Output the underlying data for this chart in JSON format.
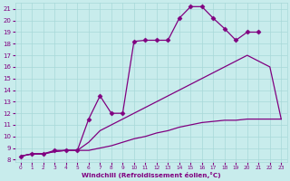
{
  "xlabel": "Windchill (Refroidissement éolien,°C)",
  "background_color": "#c8ecec",
  "line_color": "#800080",
  "grid_color": "#a8d8d8",
  "xlim": [
    -0.5,
    23.5
  ],
  "ylim": [
    7.8,
    21.5
  ],
  "xticks": [
    0,
    1,
    2,
    3,
    4,
    5,
    6,
    7,
    8,
    9,
    10,
    11,
    12,
    13,
    14,
    15,
    16,
    17,
    18,
    19,
    20,
    21,
    22,
    23
  ],
  "yticks": [
    8,
    9,
    10,
    11,
    12,
    13,
    14,
    15,
    16,
    17,
    18,
    19,
    20,
    21
  ],
  "series": [
    {
      "x": [
        0,
        1,
        2,
        3,
        4,
        5,
        6,
        7,
        8,
        9,
        10,
        11,
        12,
        13,
        14,
        15,
        16,
        17,
        18,
        19,
        20,
        21,
        22,
        23
      ],
      "y": [
        8.3,
        8.5,
        8.5,
        8.7,
        8.8,
        8.8,
        8.8,
        9.0,
        9.2,
        9.5,
        9.8,
        10.0,
        10.3,
        10.5,
        10.8,
        11.0,
        11.2,
        11.3,
        11.4,
        11.4,
        11.5,
        11.5,
        11.5,
        11.5
      ],
      "marker": null,
      "linestyle": "-",
      "linewidth": 0.9
    },
    {
      "x": [
        0,
        1,
        2,
        3,
        4,
        5,
        6,
        7,
        8,
        9,
        10,
        11,
        12,
        13,
        14,
        15,
        16,
        17,
        18,
        19,
        20,
        21,
        22,
        23
      ],
      "y": [
        8.3,
        8.5,
        8.5,
        8.7,
        8.8,
        8.8,
        9.5,
        10.5,
        11.0,
        11.5,
        12.0,
        12.5,
        13.0,
        13.5,
        14.0,
        14.5,
        15.0,
        15.5,
        16.0,
        16.5,
        17.0,
        16.5,
        16.0,
        11.5
      ],
      "marker": null,
      "linestyle": "-",
      "linewidth": 0.9
    },
    {
      "x": [
        0,
        1,
        2,
        3,
        4,
        5,
        6,
        7,
        8,
        9,
        10,
        11,
        12,
        13,
        14,
        15,
        16,
        17,
        18,
        19,
        20,
        21
      ],
      "y": [
        8.3,
        8.5,
        8.5,
        8.8,
        8.8,
        8.8,
        11.5,
        13.5,
        12.0,
        12.0,
        18.2,
        18.3,
        18.3,
        18.3,
        20.2,
        21.2,
        21.2,
        20.2,
        19.3,
        18.3,
        19.0,
        19.0
      ],
      "marker": "D",
      "markersize": 2.5,
      "linestyle": "-",
      "linewidth": 0.9
    }
  ]
}
